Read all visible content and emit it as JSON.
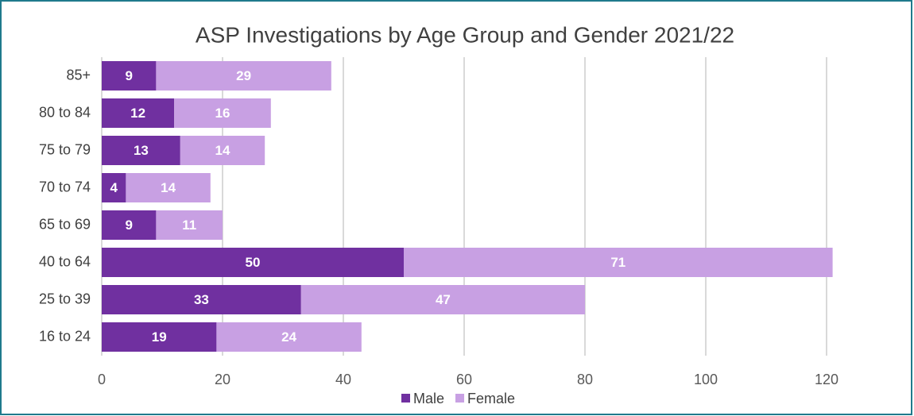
{
  "chart_data": {
    "type": "stacked-barh",
    "title": "ASP Investigations by Age Group and Gender 2021/22",
    "categories": [
      "85+",
      "80 to 84",
      "75 to 79",
      "70 to 74",
      "65 to 69",
      "40 to 64",
      "25 to 39",
      "16 to 24"
    ],
    "series": [
      {
        "name": "Male",
        "color": "#7030a0",
        "values": [
          9,
          12,
          13,
          4,
          9,
          50,
          33,
          19
        ]
      },
      {
        "name": "Female",
        "color": "#c8a0e3",
        "values": [
          29,
          16,
          14,
          14,
          11,
          71,
          47,
          24
        ]
      }
    ],
    "xlim": [
      0,
      120
    ],
    "xticks": [
      0,
      20,
      40,
      60,
      80,
      100,
      120
    ],
    "grid": true,
    "legend": "bottom"
  }
}
